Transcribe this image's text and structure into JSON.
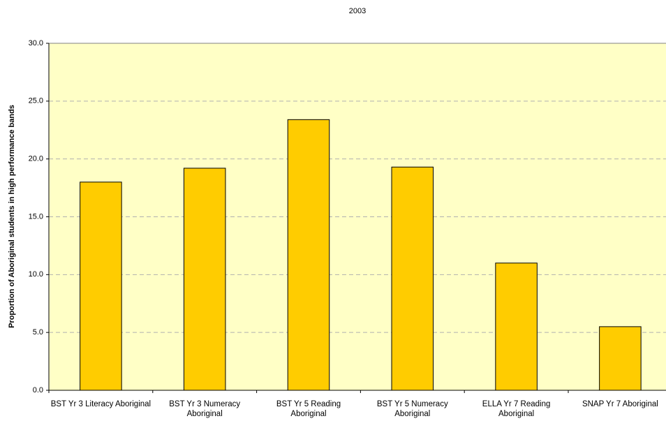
{
  "chart_data": {
    "type": "bar",
    "title": "2003",
    "y_label": "Proportion of Aboriginal students in high performance bands",
    "categories": [
      "BST Yr 3 Literacy Aboriginal",
      "BST Yr 3 Numeracy Aboriginal",
      "BST Yr 5 Reading Aboriginal",
      "BST Yr 5 Numeracy Aboriginal",
      "ELLA Yr 7 Reading Aboriginal",
      "SNAP Yr 7 Aboriginal"
    ],
    "values": [
      18.0,
      19.2,
      23.4,
      19.3,
      11.0,
      5.5
    ],
    "color": "#ffcc00",
    "ylim": [
      0,
      30
    ],
    "yticks": [
      {
        "value": 0,
        "label": "0.0"
      },
      {
        "value": 5,
        "label": "5.0"
      },
      {
        "value": 10,
        "label": "10.0"
      },
      {
        "value": 15,
        "label": "15.0"
      },
      {
        "value": 20,
        "label": "20.0"
      },
      {
        "value": 25,
        "label": "25.0"
      },
      {
        "value": 30,
        "label": "30.0"
      }
    ],
    "grid": true
  }
}
